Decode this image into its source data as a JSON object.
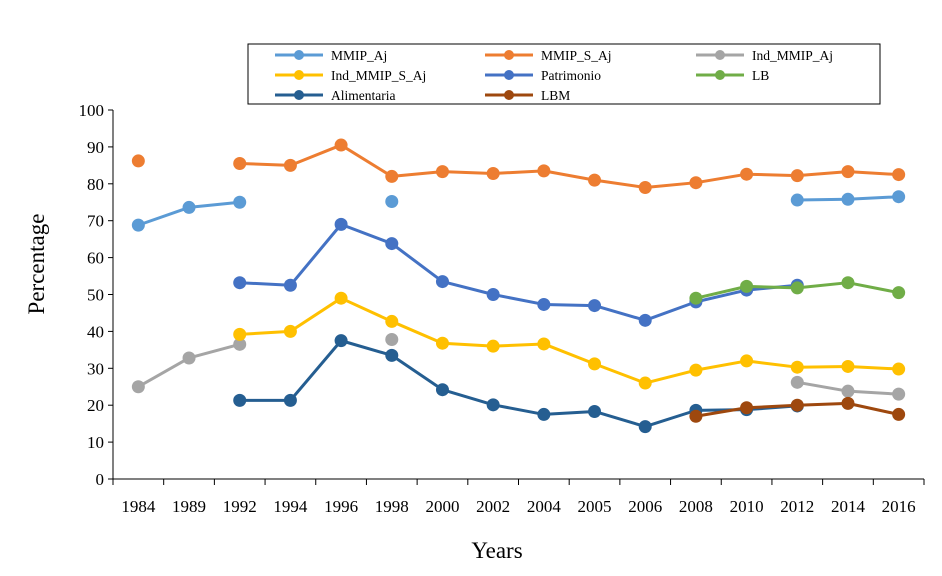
{
  "chart_data": {
    "type": "line",
    "title": "",
    "xlabel": "Years",
    "ylabel": "Percentage",
    "categories": [
      "1984",
      "1989",
      "1992",
      "1994",
      "1996",
      "1998",
      "2000",
      "2002",
      "2004",
      "2005",
      "2006",
      "2008",
      "2010",
      "2012",
      "2014",
      "2016"
    ],
    "ylim": [
      0,
      100
    ],
    "yticks": [
      0,
      10,
      20,
      30,
      40,
      50,
      60,
      70,
      80,
      90,
      100
    ],
    "grid": false,
    "legend_position": "top",
    "series": [
      {
        "name": "MMIP_Aj",
        "color": "#5B9BD5",
        "values": [
          68.8,
          73.6,
          75.0,
          null,
          null,
          75.2,
          null,
          null,
          null,
          null,
          null,
          null,
          null,
          75.6,
          75.8,
          76.5
        ]
      },
      {
        "name": "MMIP_S_Aj",
        "color": "#ED7D31",
        "values": [
          86.2,
          null,
          85.5,
          85.0,
          90.5,
          82.0,
          83.3,
          82.8,
          83.5,
          81.0,
          79.0,
          80.3,
          82.6,
          82.2,
          83.3,
          82.5
        ]
      },
      {
        "name": "Ind_MMIP_Aj",
        "color": "#A5A5A5",
        "values": [
          25.0,
          32.8,
          36.5,
          null,
          null,
          37.8,
          null,
          null,
          null,
          null,
          null,
          null,
          null,
          26.2,
          23.8,
          23.0
        ]
      },
      {
        "name": "Ind_MMIP_S_Aj",
        "color": "#FFC000",
        "values": [
          null,
          null,
          39.2,
          40.0,
          49.0,
          42.7,
          36.8,
          36.0,
          36.6,
          31.2,
          26.0,
          29.5,
          32.0,
          30.3,
          30.5,
          29.8
        ]
      },
      {
        "name": "Patrimonio",
        "color": "#4472C4",
        "values": [
          null,
          null,
          53.2,
          52.5,
          69.0,
          63.8,
          53.5,
          50.0,
          47.3,
          47.0,
          43.0,
          48.0,
          51.2,
          52.5,
          null,
          null
        ]
      },
      {
        "name": "LB",
        "color": "#70AD47",
        "values": [
          null,
          null,
          null,
          null,
          null,
          null,
          null,
          null,
          null,
          null,
          null,
          49.0,
          52.2,
          51.8,
          53.2,
          50.5
        ]
      },
      {
        "name": "Alimentaria",
        "color": "#255E91",
        "values": [
          null,
          null,
          21.3,
          21.3,
          37.5,
          33.5,
          24.2,
          20.1,
          17.5,
          18.3,
          14.2,
          18.6,
          18.8,
          19.8,
          null,
          null
        ]
      },
      {
        "name": "LBM",
        "color": "#9E480E",
        "values": [
          null,
          null,
          null,
          null,
          null,
          null,
          null,
          null,
          null,
          null,
          null,
          17.0,
          19.3,
          20.0,
          20.5,
          17.5
        ]
      }
    ]
  }
}
